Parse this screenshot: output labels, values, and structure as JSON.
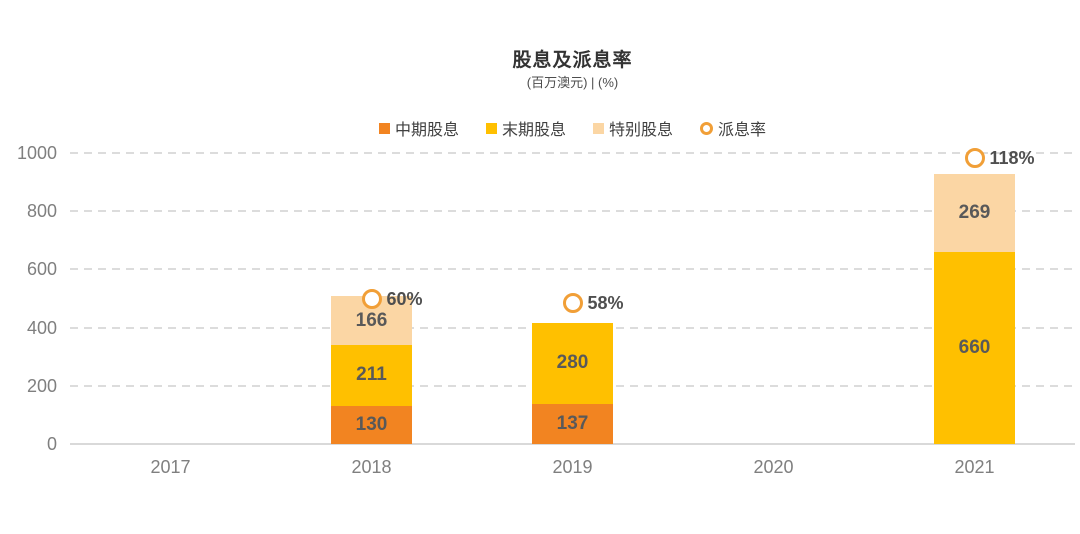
{
  "title": "股息及派息率",
  "subtitle": "(百万澳元) | (%)",
  "legend": [
    {
      "key": "interim-dividend",
      "label": "中期股息",
      "color": "#F28421",
      "marker": "square"
    },
    {
      "key": "final-dividend",
      "label": "末期股息",
      "color": "#FFC000",
      "marker": "square"
    },
    {
      "key": "special-dividend",
      "label": "特别股息",
      "color": "#FBD6A4",
      "marker": "square"
    },
    {
      "key": "payout-ratio",
      "label": "派息率",
      "color": "#F19F37",
      "marker": "ring"
    }
  ],
  "chart_data": {
    "type": "bar",
    "stacked": true,
    "title": "股息及派息率",
    "subtitle": "(百万澳元) | (%)",
    "categories": [
      "2017",
      "2018",
      "2019",
      "2020",
      "2021"
    ],
    "series": [
      {
        "name": "中期股息",
        "key": "interim-dividend",
        "color": "#F28421",
        "values": [
          null,
          130,
          137,
          null,
          null
        ]
      },
      {
        "name": "末期股息",
        "key": "final-dividend",
        "color": "#FFC000",
        "values": [
          null,
          211,
          280,
          null,
          660
        ]
      },
      {
        "name": "特别股息",
        "key": "special-dividend",
        "color": "#FBD6A4",
        "values": [
          null,
          166,
          null,
          null,
          269
        ]
      }
    ],
    "point_series": {
      "name": "派息率",
      "key": "payout-ratio",
      "color": "#F19F37",
      "values_pct": [
        null,
        60,
        58,
        null,
        118
      ],
      "labels": [
        "",
        "60%",
        "58%",
        "",
        "118%"
      ]
    },
    "ylim": [
      0,
      1000
    ],
    "yticks": [
      0,
      200,
      400,
      600,
      800,
      1000
    ],
    "y2lim": [
      0,
      120
    ],
    "grid": "dashed-horizontal",
    "legend_position": "top-center",
    "colors": {
      "gridline": "#dcdcdc",
      "baseline": "#d9d9d9",
      "tick_text": "#7f7f7f",
      "value_text": "#595959"
    }
  }
}
